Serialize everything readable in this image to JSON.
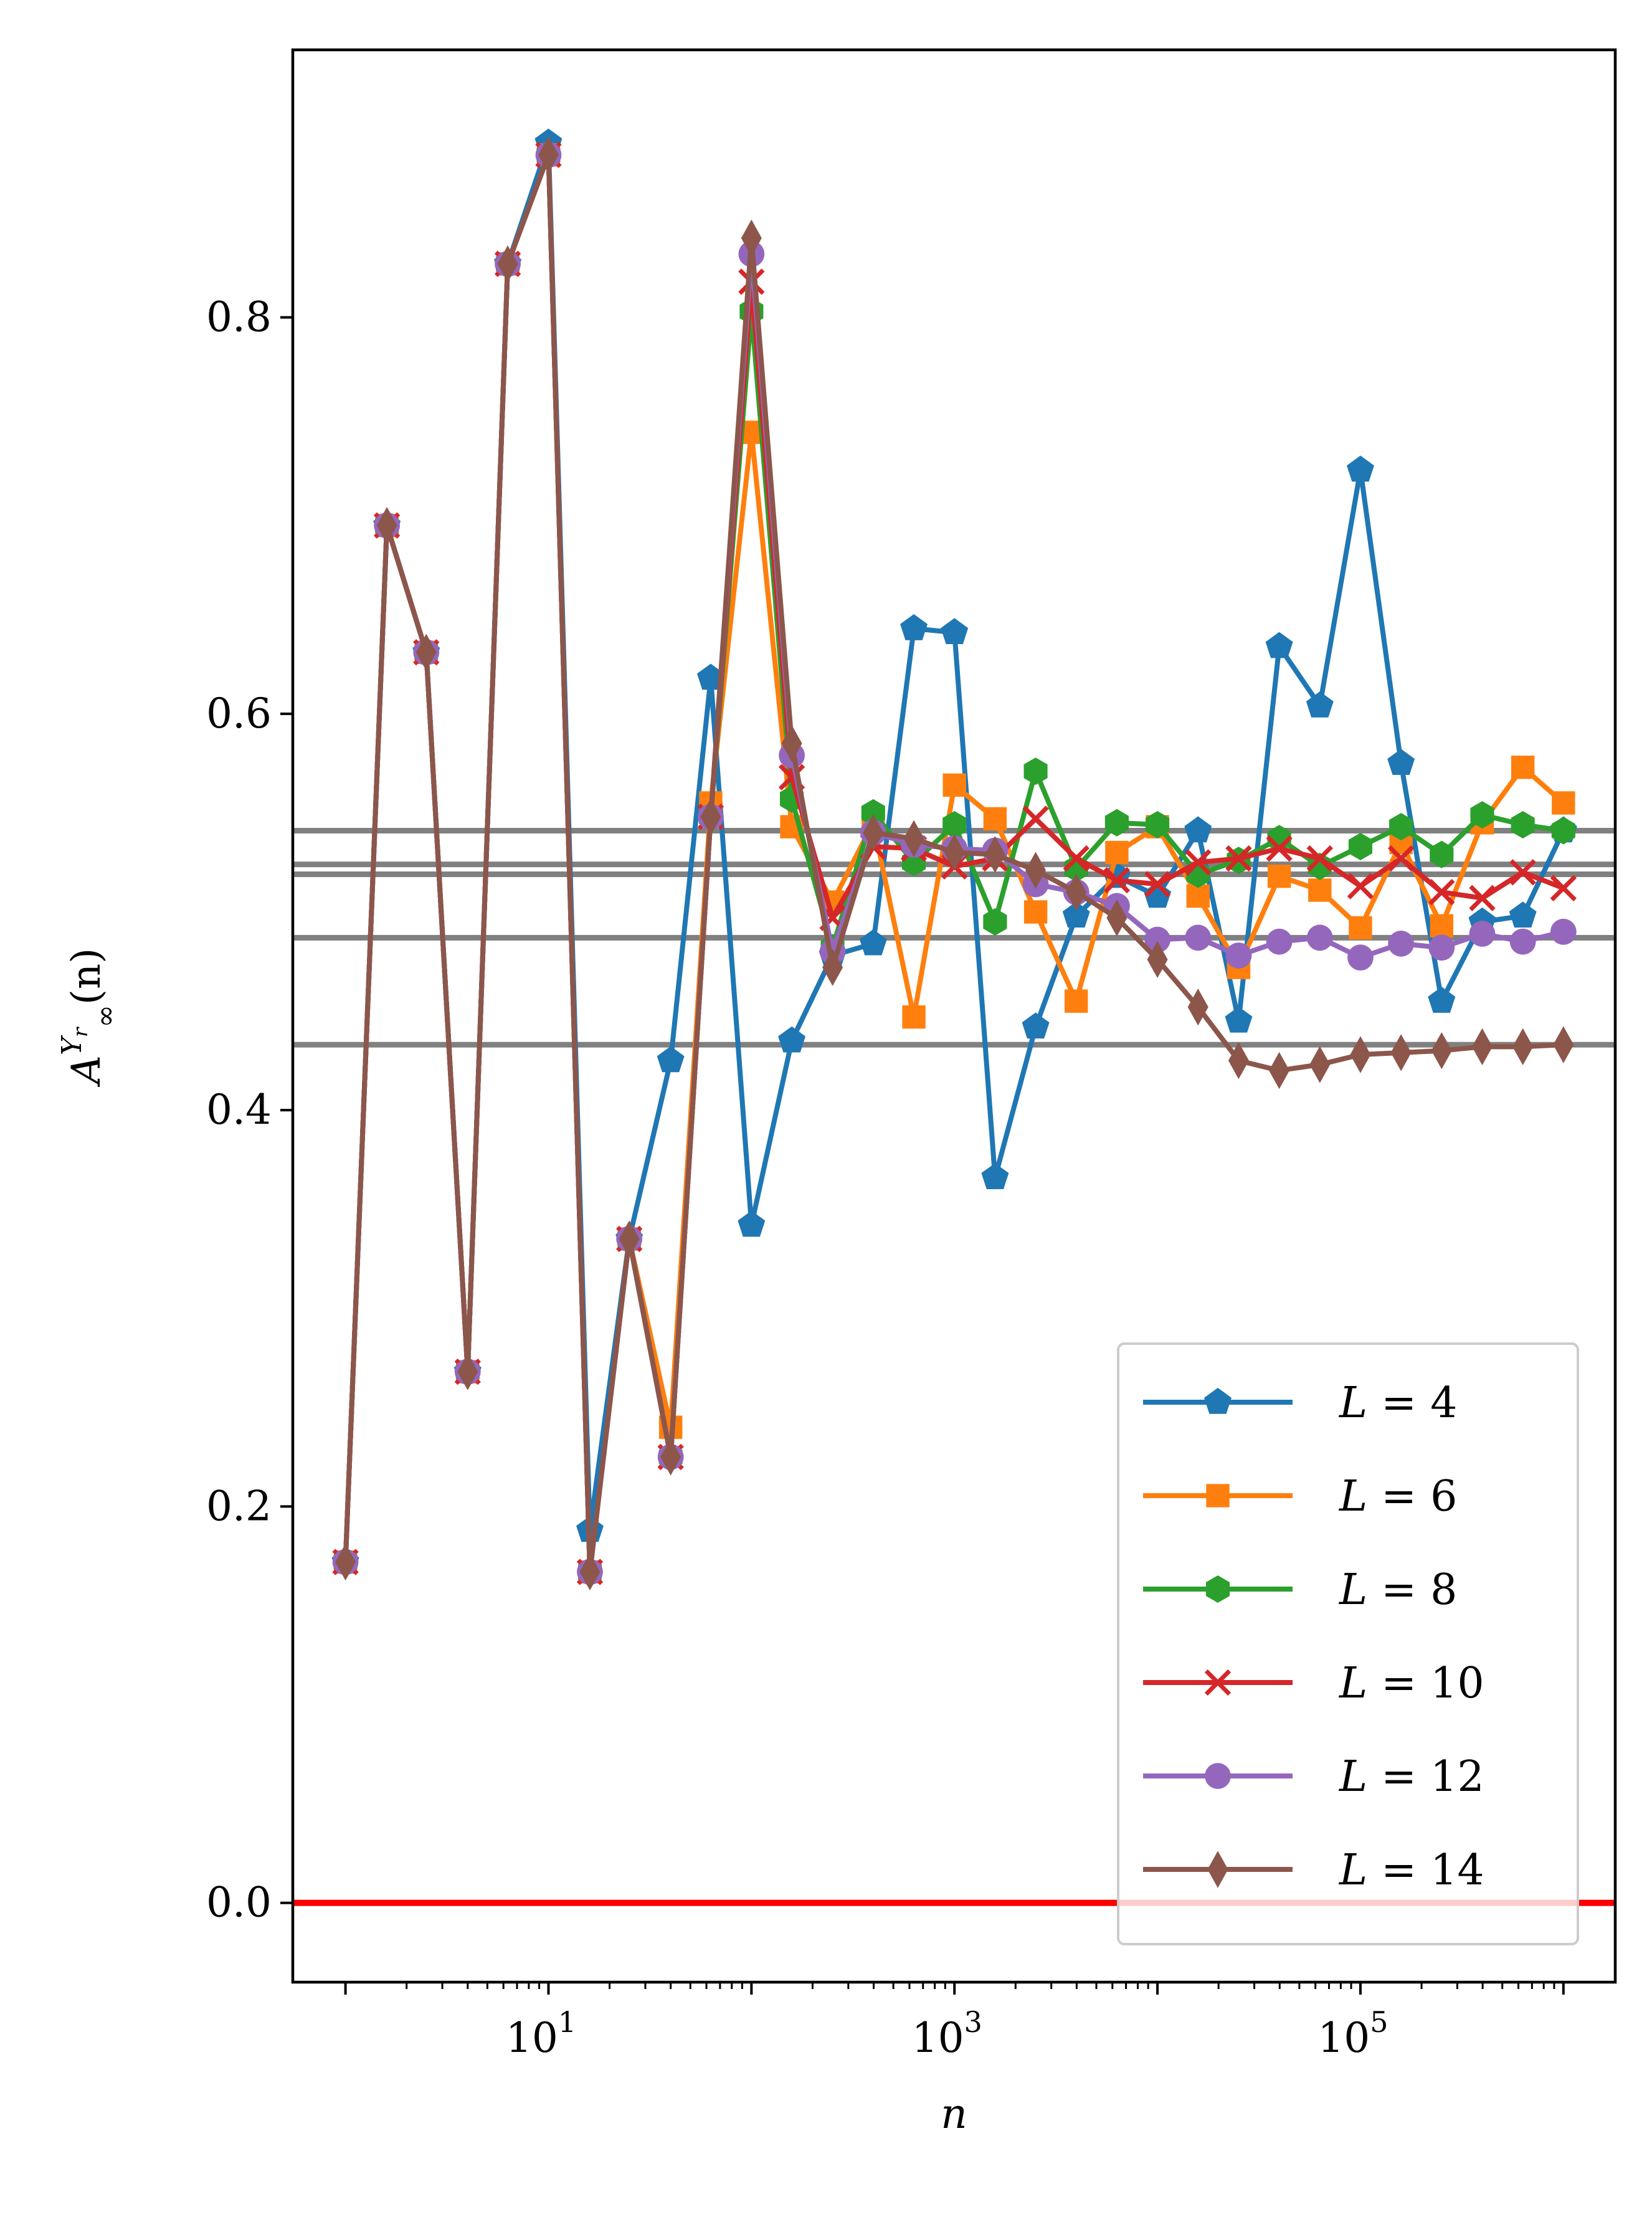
{
  "chart_data": {
    "type": "line",
    "title": "",
    "xlabel": "n",
    "ylabel": "A∞^{Y_r}(n)",
    "ylabel_base": "A",
    "ylabel_sub": "∞",
    "ylabel_sup": "Y",
    "ylabel_sup_sub": "r",
    "ylabel_arg": "(n)",
    "xscale": "log",
    "xlim": [
      0.55,
      1800000
    ],
    "ylim": [
      -0.04,
      0.935
    ],
    "xticks": [
      {
        "value": 10,
        "base": "10",
        "exp": "1"
      },
      {
        "value": 1000,
        "base": "10",
        "exp": "3"
      },
      {
        "value": 100000,
        "base": "10",
        "exp": "5"
      }
    ],
    "yticks": [
      {
        "value": 0.0,
        "label": "0.0"
      },
      {
        "value": 0.2,
        "label": "0.2"
      },
      {
        "value": 0.4,
        "label": "0.4"
      },
      {
        "value": 0.6,
        "label": "0.6"
      },
      {
        "value": 0.8,
        "label": "0.8"
      }
    ],
    "reference_lines": [
      {
        "y": 0.0,
        "color": "#ff0000"
      },
      {
        "y": 0.541,
        "color": "#808080"
      },
      {
        "y": 0.524,
        "color": "#808080"
      },
      {
        "y": 0.519,
        "color": "#808080"
      },
      {
        "y": 0.487,
        "color": "#808080"
      },
      {
        "y": 0.433,
        "color": "#808080"
      }
    ],
    "legend_position": "lower-right",
    "x": [
      1,
      1.6,
      2.5,
      4,
      6.3,
      10,
      16,
      25,
      40,
      63,
      100,
      158,
      251,
      398,
      631,
      1000,
      1585,
      2512,
      3981,
      6310,
      10000,
      15849,
      25119,
      39811,
      63096,
      100000,
      158489,
      251189,
      398107,
      630957,
      1000000
    ],
    "series": [
      {
        "name": "L = 4",
        "legend_var": "L",
        "legend_op": "=",
        "legend_num": "4",
        "color": "#1f77b4",
        "marker": "pentagon",
        "values": [
          0.172,
          0.695,
          0.631,
          0.268,
          0.827,
          0.888,
          0.188,
          0.335,
          0.425,
          0.618,
          0.342,
          0.435,
          0.478,
          0.484,
          0.643,
          0.641,
          0.366,
          0.442,
          0.498,
          0.518,
          0.508,
          0.541,
          0.445,
          0.634,
          0.604,
          0.723,
          0.575,
          0.455,
          0.495,
          0.498,
          0.541
        ]
      },
      {
        "name": "L = 6",
        "legend_var": "L",
        "legend_op": "=",
        "legend_num": "6",
        "color": "#ff7f0e",
        "marker": "square",
        "values": [
          0.172,
          0.695,
          0.631,
          0.268,
          0.827,
          0.882,
          0.167,
          0.335,
          0.24,
          0.555,
          0.742,
          0.543,
          0.505,
          0.545,
          0.447,
          0.564,
          0.547,
          0.5,
          0.455,
          0.53,
          0.543,
          0.508,
          0.472,
          0.518,
          0.511,
          0.492,
          0.535,
          0.493,
          0.545,
          0.573,
          0.555
        ]
      },
      {
        "name": "L = 8",
        "legend_var": "L",
        "legend_op": "=",
        "legend_num": "8",
        "color": "#2ca02c",
        "marker": "hexagon",
        "values": [
          0.172,
          0.695,
          0.631,
          0.268,
          0.827,
          0.882,
          0.167,
          0.335,
          0.225,
          0.548,
          0.803,
          0.557,
          0.482,
          0.55,
          0.525,
          0.544,
          0.495,
          0.571,
          0.522,
          0.545,
          0.544,
          0.519,
          0.526,
          0.537,
          0.523,
          0.533,
          0.543,
          0.529,
          0.549,
          0.544,
          0.541
        ]
      },
      {
        "name": "L = 10",
        "legend_var": "L",
        "legend_op": "=",
        "legend_num": "10",
        "color": "#d62728",
        "marker": "x",
        "values": [
          0.172,
          0.695,
          0.631,
          0.268,
          0.827,
          0.882,
          0.167,
          0.335,
          0.225,
          0.548,
          0.818,
          0.568,
          0.497,
          0.533,
          0.532,
          0.523,
          0.527,
          0.547,
          0.527,
          0.516,
          0.514,
          0.525,
          0.527,
          0.532,
          0.527,
          0.513,
          0.527,
          0.51,
          0.507,
          0.52,
          0.512
        ]
      },
      {
        "name": "L = 12",
        "legend_var": "L",
        "legend_op": "=",
        "legend_num": "12",
        "color": "#9467bd",
        "marker": "circle",
        "values": [
          0.172,
          0.695,
          0.631,
          0.268,
          0.827,
          0.882,
          0.167,
          0.335,
          0.225,
          0.548,
          0.832,
          0.579,
          0.48,
          0.54,
          0.534,
          0.532,
          0.531,
          0.514,
          0.51,
          0.503,
          0.486,
          0.487,
          0.478,
          0.485,
          0.487,
          0.477,
          0.484,
          0.482,
          0.489,
          0.485,
          0.49
        ]
      },
      {
        "name": "L = 14",
        "legend_var": "L",
        "legend_op": "=",
        "legend_num": "14",
        "color": "#8c564b",
        "marker": "thin_diamond",
        "values": [
          0.172,
          0.695,
          0.631,
          0.268,
          0.827,
          0.882,
          0.167,
          0.335,
          0.225,
          0.548,
          0.84,
          0.585,
          0.472,
          0.54,
          0.537,
          0.53,
          0.529,
          0.521,
          0.51,
          0.497,
          0.476,
          0.452,
          0.425,
          0.42,
          0.423,
          0.428,
          0.429,
          0.43,
          0.432,
          0.432,
          0.433
        ]
      }
    ]
  }
}
